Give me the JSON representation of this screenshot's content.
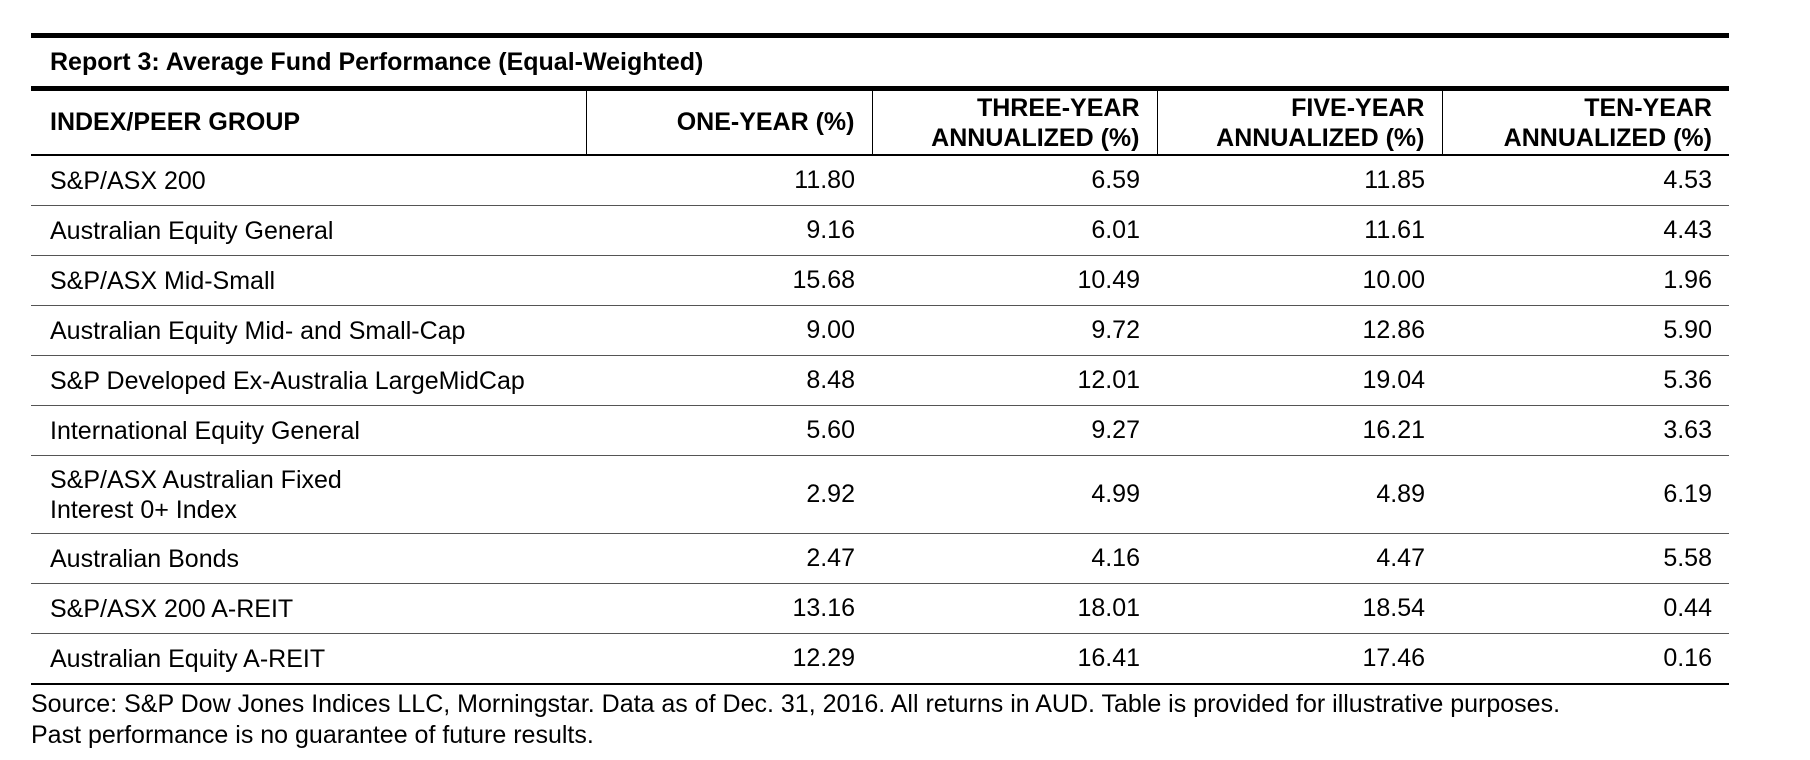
{
  "report": {
    "title": "Report 3: Average Fund Performance (Equal-Weighted)",
    "columns": [
      "INDEX/PEER GROUP",
      "ONE-YEAR (%)",
      "THREE-YEAR",
      "ANNUALIZED (%)",
      "FIVE-YEAR",
      "ANNUALIZED (%)",
      "TEN-YEAR",
      "ANNUALIZED (%)"
    ],
    "header": {
      "c0": "INDEX/PEER GROUP",
      "c1": "ONE-YEAR (%)",
      "c2a": "THREE-YEAR",
      "c2b": "ANNUALIZED (%)",
      "c3a": "FIVE-YEAR",
      "c3b": "ANNUALIZED (%)",
      "c4a": "TEN-YEAR",
      "c4b": "ANNUALIZED (%)"
    },
    "rows": [
      [
        "S&P/ASX 200",
        "11.80",
        "6.59",
        "11.85",
        "4.53"
      ],
      [
        "Australian Equity General",
        "9.16",
        "6.01",
        "11.61",
        "4.43"
      ],
      [
        "S&P/ASX Mid-Small",
        "15.68",
        "10.49",
        "10.00",
        "1.96"
      ],
      [
        "Australian Equity Mid- and Small-Cap",
        "9.00",
        "9.72",
        "12.86",
        "5.90"
      ],
      [
        "S&P Developed Ex-Australia LargeMidCap",
        "8.48",
        "12.01",
        "19.04",
        "5.36"
      ],
      [
        "International Equity General",
        "5.60",
        "9.27",
        "16.21",
        "3.63"
      ],
      [
        "S&P/ASX Australian Fixed Interest 0+ Index",
        "2.92",
        "4.99",
        "4.89",
        "6.19"
      ],
      [
        "Australian Bonds",
        "2.47",
        "4.16",
        "4.47",
        "5.58"
      ],
      [
        "S&P/ASX 200 A-REIT",
        "13.16",
        "18.01",
        "18.54",
        "0.44"
      ],
      [
        "Australian Equity A-REIT",
        "12.29",
        "16.41",
        "17.46",
        "0.16"
      ]
    ],
    "source_line1": "Source: S&P Dow Jones Indices LLC, Morningstar.  Data as of Dec. 31, 2016.  All returns in AUD.  Table is provided for illustrative purposes.",
    "source_line2": "Past performance is no guarantee of future results."
  }
}
